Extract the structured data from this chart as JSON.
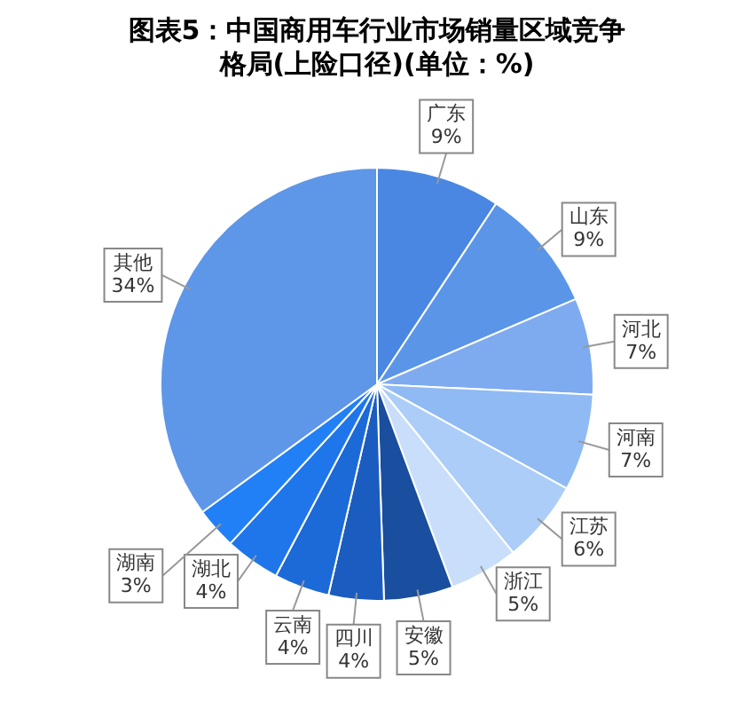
{
  "chart_data": {
    "type": "pie",
    "title": "图表5：中国商用车行业市场销量区域竞争格局(上险口径)(单位：%)",
    "categories": [
      "广东",
      "山东",
      "河北",
      "河南",
      "江苏",
      "浙江",
      "安徽",
      "四川",
      "云南",
      "湖北",
      "湖南",
      "其他"
    ],
    "values": [
      9,
      9,
      7,
      7,
      6,
      5,
      5,
      4,
      4,
      4,
      3,
      34
    ],
    "value_labels": [
      "9%",
      "9%",
      "7%",
      "7%",
      "6%",
      "5%",
      "5%",
      "4%",
      "4%",
      "4%",
      "3%",
      "34%"
    ],
    "colors": [
      "#4a87e2",
      "#5a95e8",
      "#7eaaf0",
      "#8fbaf4",
      "#abcdf8",
      "#c8defa",
      "#1a4e9e",
      "#1b5cc0",
      "#1c69d8",
      "#1f76ea",
      "#2180f6",
      "#5e96e8"
    ],
    "legend": false
  }
}
